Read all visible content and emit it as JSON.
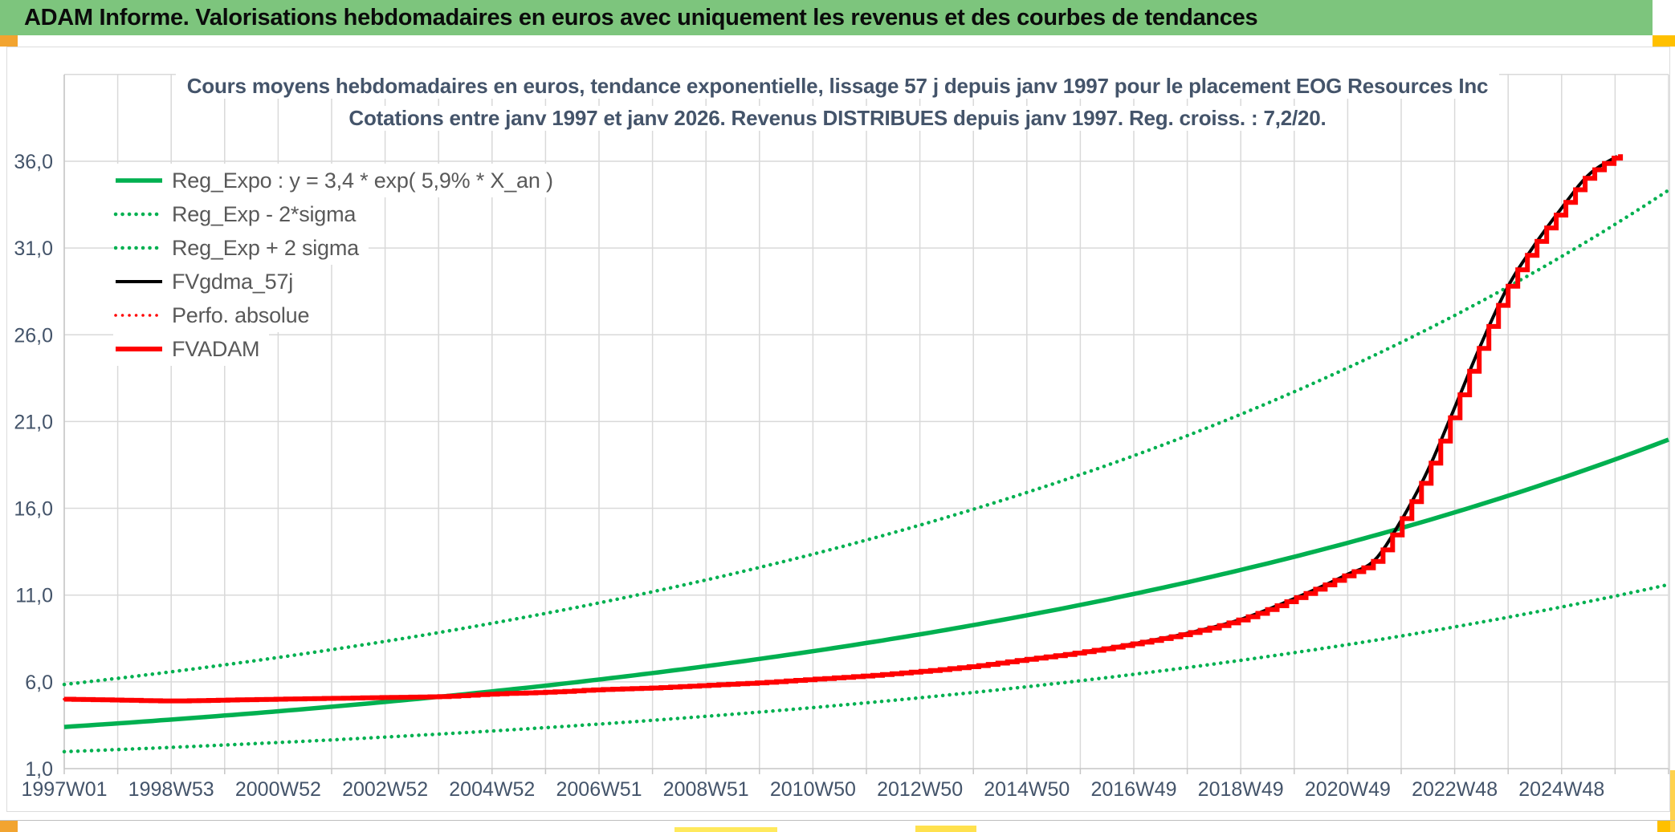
{
  "header": {
    "title": "ADAM Informe. Valorisations hebdomadaires en euros avec uniquement les revenus et des courbes de tendances",
    "bg_color": "#7dc57d"
  },
  "chart_data": {
    "type": "line",
    "title_line1": "Cours moyens hebdomadaires en euros, tendance exponentielle, lissage 57 j depuis janv 1997 pour le placement EOG Resources Inc",
    "title_line2": "Cotations entre janv 1997 et janv 2026. Revenus DISTRIBUES depuis janv 1997. Reg. croiss. : 7,2/20.",
    "grid": true,
    "legend_position": "top-left",
    "colors": {
      "regression_green": "#00B050",
      "price_red": "#FF0000",
      "smoothed_black": "#000000",
      "gridline": "#D9D9D9",
      "axis_line": "#C6C6C6",
      "axis_label": "#44546a",
      "legend_text": "#595959"
    },
    "x_axis": {
      "start_year": 1997,
      "end_year": 2027,
      "gridline_every_years": 1,
      "label_every_years": 2,
      "tick_labels": [
        "1997W01",
        "1998W53",
        "2000W52",
        "2002W52",
        "2004W52",
        "2006W51",
        "2008W51",
        "2010W50",
        "2012W50",
        "2014W50",
        "2016W49",
        "2018W49",
        "2020W49",
        "2022W48",
        "2024W48"
      ]
    },
    "y_axis": {
      "min": 1.0,
      "max": 41.0,
      "major_unit": 5.0,
      "tick_values": [
        1,
        6,
        11,
        16,
        21,
        26,
        31,
        36
      ],
      "tick_labels": [
        "1,0",
        "6,0",
        "11,0",
        "16,0",
        "21,0",
        "26,0",
        "31,0",
        "36,0"
      ]
    },
    "series": [
      {
        "name": "Reg_Expo",
        "label": "Reg_Expo : y = 3,4 * exp( 5,9% *  X_an )",
        "type": "exponential",
        "a": 3.4,
        "b": 0.059,
        "t_start": 0,
        "t_end": 30,
        "color": "#00B050",
        "style": "solid",
        "width": 5.5
      },
      {
        "name": "Reg_Exp_minus_2sigma",
        "label": "Reg_Exp - 2*sigma",
        "type": "exponential",
        "a": 1.977,
        "b": 0.059,
        "t_start": 0,
        "t_end": 30,
        "color": "#00B050",
        "style": "dotted",
        "width": 4.5
      },
      {
        "name": "Reg_Exp_plus_2sigma",
        "label": "Reg_Exp + 2 sigma",
        "type": "exponential",
        "a": 5.848,
        "b": 0.059,
        "t_start": 0,
        "t_end": 30,
        "color": "#00B050",
        "style": "dotted",
        "width": 4.5
      },
      {
        "name": "FVgdma_57j",
        "label": "FVgdma_57j",
        "type": "points",
        "follows": "FVADAM",
        "color": "#000000",
        "style": "solid",
        "width": 4
      },
      {
        "name": "Perfo_absolue",
        "label": "Perfo. absolue",
        "type": "points",
        "follows": "FVADAM",
        "color": "#FF0000",
        "style": "dotted",
        "width": 3.5
      },
      {
        "name": "FVADAM",
        "label": "FVADAM",
        "type": "points",
        "render": "stepped",
        "color": "#FF0000",
        "style": "solid",
        "width": 6,
        "years": [
          1997,
          1998,
          1999,
          2000,
          2001,
          2002,
          2003,
          2004,
          2005,
          2006,
          2007,
          2008,
          2009,
          2010,
          2011,
          2012,
          2013,
          2014,
          2015,
          2016,
          2017,
          2018,
          2019,
          2020,
          2021,
          2021.5,
          2022,
          2022.5,
          2023,
          2023.5,
          2024,
          2024.5,
          2025,
          2025.5,
          2026.1
        ],
        "values": [
          5.0,
          4.95,
          4.9,
          4.95,
          5.0,
          5.05,
          5.1,
          5.15,
          5.3,
          5.4,
          5.55,
          5.65,
          5.8,
          5.95,
          6.15,
          6.35,
          6.6,
          6.9,
          7.3,
          7.7,
          8.2,
          8.8,
          9.6,
          10.8,
          12.2,
          13.0,
          15.3,
          18.2,
          21.8,
          25.5,
          28.8,
          31.2,
          33.3,
          35.2,
          36.4
        ]
      }
    ]
  },
  "sheet_accents": {
    "top_left_color": "#f2a430",
    "top_right_color": "#ffc000",
    "bottom_left_color": "#f2a430",
    "bottom_right_color": "#ffc000",
    "bottom_strip1_color": "#ffe95c",
    "bottom_strip2_color": "#ffe14d",
    "right_sliver_color": "#ffd24d"
  }
}
